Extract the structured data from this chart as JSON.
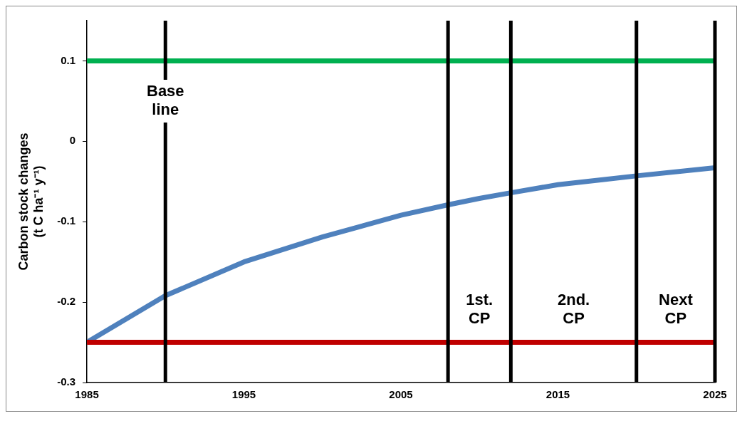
{
  "chart_data": {
    "type": "line",
    "ylabel": "Carbon stock changes\n(t C ha⁻¹ y⁻¹)",
    "xlim": [
      1985,
      2025
    ],
    "xticks": [
      1985,
      1995,
      2005,
      2015,
      2025
    ],
    "ylim": [
      -0.3,
      0.15
    ],
    "yticks": [
      -0.3,
      -0.2,
      -0.1,
      0,
      0.1
    ],
    "grid": false,
    "legend": false,
    "marker": "none",
    "line_style": "solid",
    "series": [
      {
        "color": "#00b050",
        "x": [
          1985,
          2025
        ],
        "values": [
          0.1,
          0.1
        ]
      },
      {
        "color": "#c00000",
        "x": [
          1985,
          2025
        ],
        "values": [
          -0.25,
          -0.25
        ]
      },
      {
        "color": "#4f81bd",
        "x": [
          1985,
          1990,
          1995,
          2000,
          2005,
          2008,
          2010,
          2012,
          2015,
          2020,
          2025
        ],
        "values": [
          -0.25,
          -0.192,
          -0.15,
          -0.119,
          -0.092,
          -0.079,
          -0.071,
          -0.064,
          -0.054,
          -0.043,
          -0.033
        ]
      }
    ],
    "ref_lines": [
      {
        "axis": "x",
        "value": 1990,
        "label": "Base line",
        "color": "#000000"
      },
      {
        "axis": "x",
        "value": 2008,
        "color": "#000000"
      },
      {
        "axis": "x",
        "value": 2012,
        "color": "#000000"
      },
      {
        "axis": "x",
        "value": 2020,
        "color": "#000000"
      },
      {
        "axis": "x",
        "value": 2025,
        "color": "#000000"
      }
    ],
    "annotations": [
      "1st. CP",
      "2nd. CP",
      "Next CP"
    ]
  }
}
